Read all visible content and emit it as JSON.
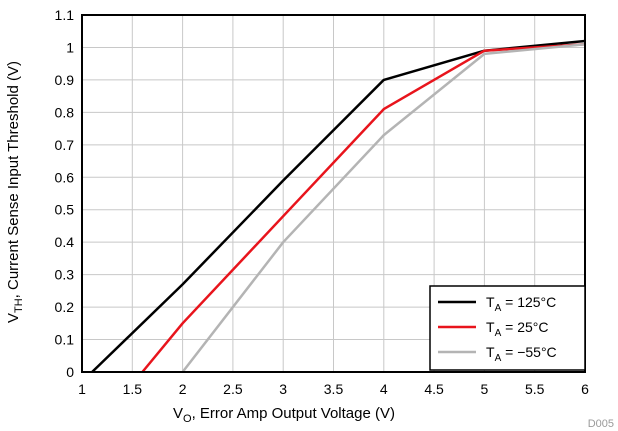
{
  "chart_data": {
    "type": "line",
    "xlabel": {
      "main": "V",
      "sub": "O",
      "rest": ", Error Amp Output Voltage (V)"
    },
    "ylabel": {
      "main": "V",
      "sub": "TH",
      "rest": ", Current Sense Input Threshold (V)"
    },
    "xlim": [
      1,
      6
    ],
    "ylim": [
      0,
      1.1
    ],
    "xticks": [
      1,
      1.5,
      2,
      2.5,
      3,
      3.5,
      4,
      4.5,
      5,
      5.5,
      6
    ],
    "xtick_labels": [
      "1",
      "1.5",
      "2",
      "2.5",
      "3",
      "3.5",
      "4",
      "4.5",
      "5",
      "5.5",
      "6"
    ],
    "yticks": [
      0,
      0.1,
      0.2,
      0.3,
      0.4,
      0.5,
      0.6,
      0.7,
      0.8,
      0.9,
      1,
      1.1
    ],
    "ytick_labels": [
      "0",
      "0.1",
      "0.2",
      "0.3",
      "0.4",
      "0.5",
      "0.6",
      "0.7",
      "0.8",
      "0.9",
      "1",
      "1.1"
    ],
    "grid": true,
    "legend_position": "bottom-right",
    "series": [
      {
        "name": {
          "main": "T",
          "sub": "A",
          "rest": " = 125°C"
        },
        "color": "#000000",
        "x": [
          1.1,
          2,
          3,
          4,
          5,
          6
        ],
        "y": [
          0,
          0.27,
          0.59,
          0.9,
          0.99,
          1.02
        ]
      },
      {
        "name": {
          "main": "T",
          "sub": "A",
          "rest": " = 25°C"
        },
        "color": "#e8141c",
        "x": [
          1.6,
          2,
          3,
          4,
          5,
          6
        ],
        "y": [
          0,
          0.15,
          0.48,
          0.81,
          0.99,
          1.01
        ]
      },
      {
        "name": {
          "main": "T",
          "sub": "A",
          "rest": " = −55°C"
        },
        "color": "#b4b4b4",
        "x": [
          2,
          3,
          4,
          5,
          6
        ],
        "y": [
          0,
          0.4,
          0.73,
          0.98,
          1.01
        ]
      }
    ],
    "footnote": "D005"
  }
}
